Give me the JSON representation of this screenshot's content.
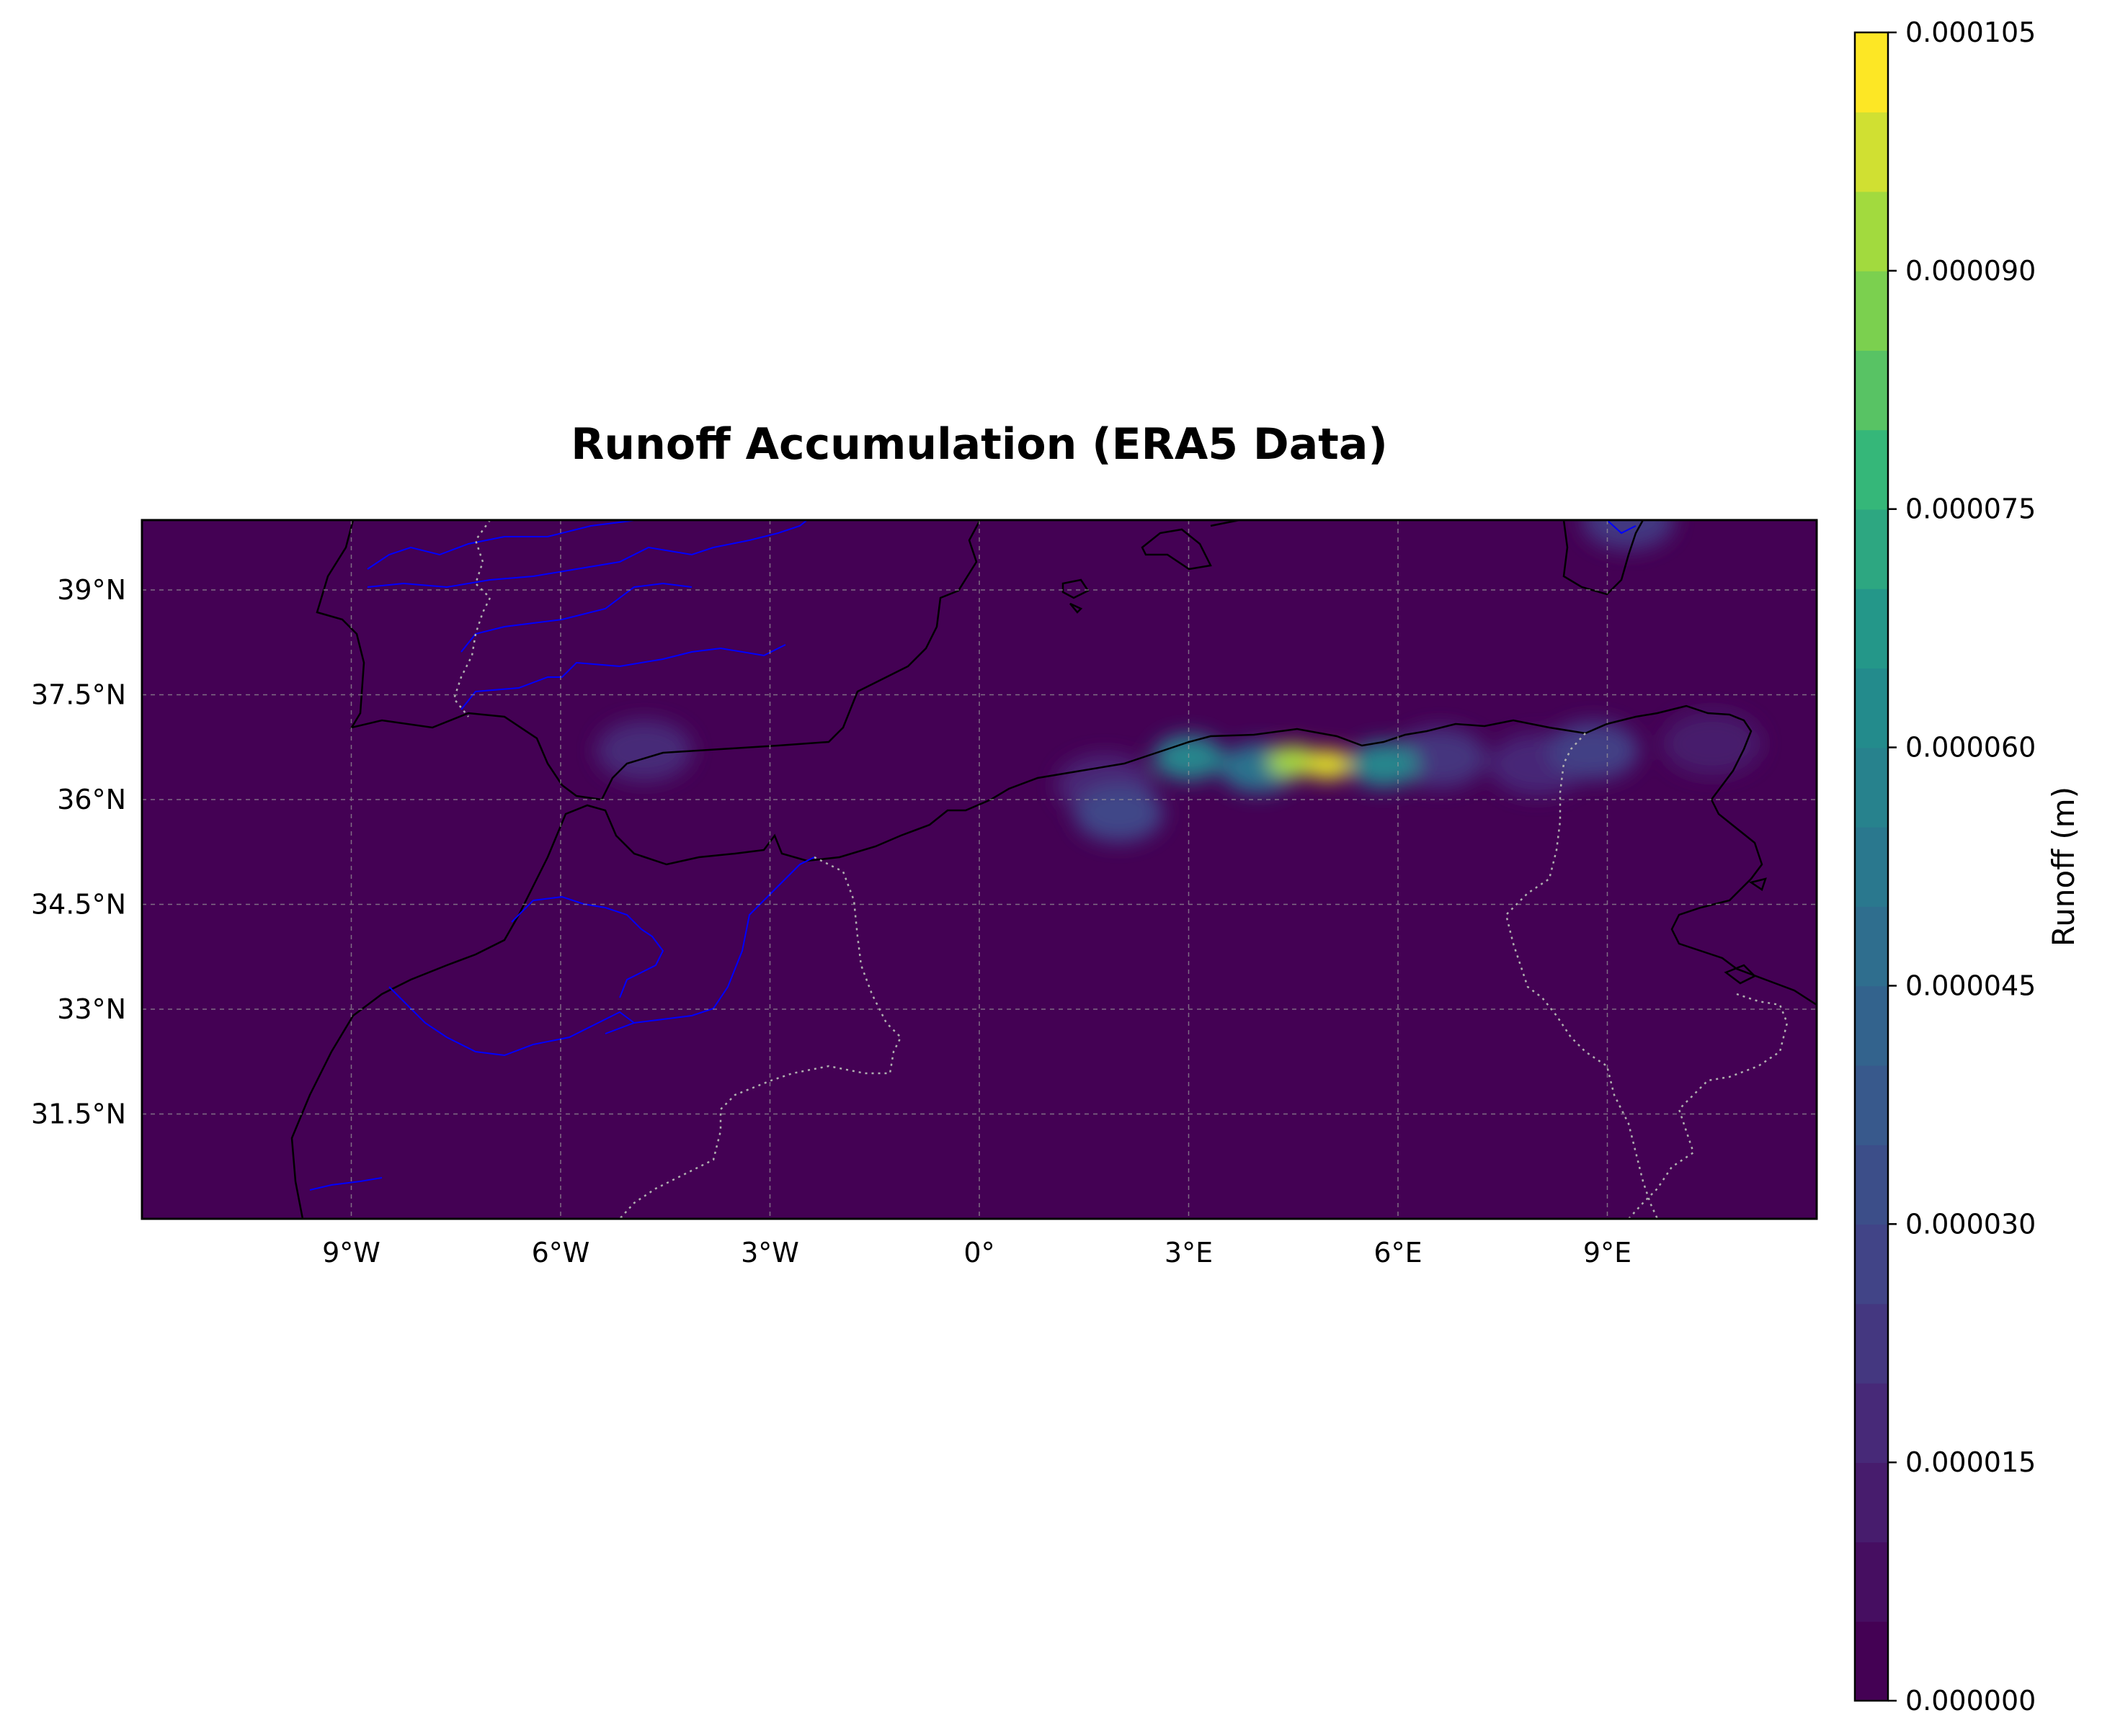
{
  "chart_data": {
    "type": "heatmap",
    "title": "Runoff Accumulation (ERA5 Data)",
    "projection": "PlateCarree",
    "extent": {
      "lon": [
        -12,
        12
      ],
      "lat": [
        30,
        40
      ]
    },
    "lon_ticks": [
      {
        "value": -9,
        "label": "9°W"
      },
      {
        "value": -6,
        "label": "6°W"
      },
      {
        "value": -3,
        "label": "3°W"
      },
      {
        "value": 0,
        "label": "0°"
      },
      {
        "value": 3,
        "label": "3°E"
      },
      {
        "value": 6,
        "label": "6°E"
      },
      {
        "value": 9,
        "label": "9°E"
      }
    ],
    "lat_ticks": [
      {
        "value": 39,
        "label": "39°N"
      },
      {
        "value": 37.5,
        "label": "37.5°N"
      },
      {
        "value": 36,
        "label": "36°N"
      },
      {
        "value": 34.5,
        "label": "34.5°N"
      },
      {
        "value": 33,
        "label": "33°N"
      },
      {
        "value": 31.5,
        "label": "31.5°N"
      }
    ],
    "grid": true,
    "colorbar": {
      "label": "Runoff (m)",
      "colormap": "viridis",
      "min": 0.0,
      "max": 0.000105,
      "levels": 21,
      "ticks": [
        {
          "value": 0.0,
          "label": "0.000000"
        },
        {
          "value": 1.5e-05,
          "label": "0.000015"
        },
        {
          "value": 3e-05,
          "label": "0.000030"
        },
        {
          "value": 4.5e-05,
          "label": "0.000045"
        },
        {
          "value": 6e-05,
          "label": "0.000060"
        },
        {
          "value": 7.5e-05,
          "label": "0.000075"
        },
        {
          "value": 9e-05,
          "label": "0.000090"
        },
        {
          "value": 0.000105,
          "label": "0.000105"
        }
      ]
    },
    "hotspots": [
      {
        "lon": 4.5,
        "lat": 36.55,
        "value": 9.5e-05
      },
      {
        "lon": 5.0,
        "lat": 36.5,
        "value": 0.000102
      },
      {
        "lon": 3.0,
        "lat": 36.6,
        "value": 6e-05
      },
      {
        "lon": 5.8,
        "lat": 36.5,
        "value": 6e-05
      },
      {
        "lon": 4.0,
        "lat": 36.45,
        "value": 5e-05
      },
      {
        "lon": 2.0,
        "lat": 35.8,
        "value": 2.8e-05
      },
      {
        "lon": 1.8,
        "lat": 36.2,
        "value": 1.4e-05
      },
      {
        "lon": 6.6,
        "lat": 36.6,
        "value": 2e-05
      },
      {
        "lon": 8.8,
        "lat": 36.7,
        "value": 2.5e-05
      },
      {
        "lon": 8.0,
        "lat": 36.5,
        "value": 1.5e-05
      },
      {
        "lon": -4.8,
        "lat": 36.7,
        "value": 1.6e-05
      },
      {
        "lon": 9.3,
        "lat": 40.0,
        "value": 2.2e-05
      },
      {
        "lon": 10.5,
        "lat": 36.8,
        "value": 1e-05
      }
    ],
    "colors": {
      "background_low": "#440154",
      "coastline": "#000000",
      "rivers": "#0000ff",
      "borders": "#a9a9a9",
      "grid": "#888888"
    }
  }
}
